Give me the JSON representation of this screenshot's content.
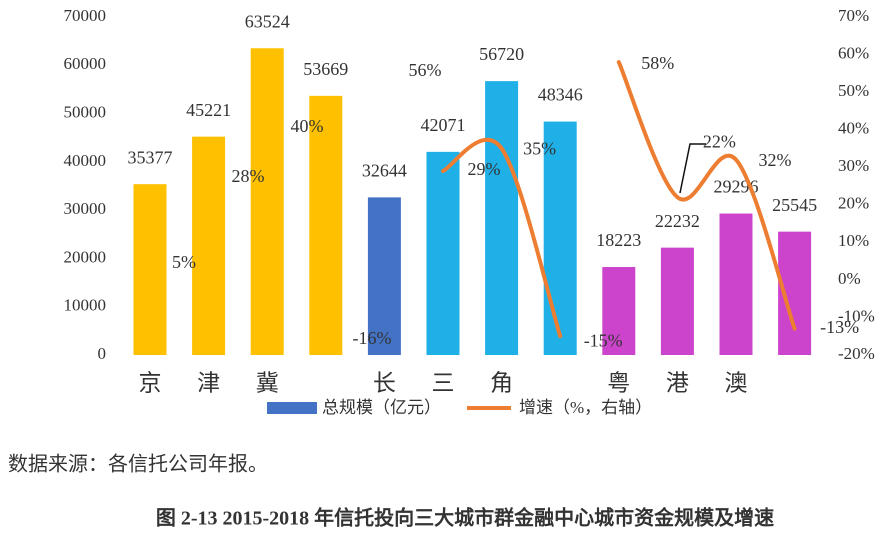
{
  "chart_data": {
    "type": "bar-line",
    "categories": [
      "京",
      "津",
      "冀",
      null,
      "长",
      "三",
      "角",
      null,
      "粤",
      "港",
      "澳",
      null
    ],
    "series": [
      {
        "name": "总规模（亿元）",
        "color": "#4472C4",
        "type": "bar",
        "colors": [
          "#FFC000",
          "#FFC000",
          "#FFC000",
          "#FFC000",
          "#4472C4",
          "#1FB0E8",
          "#1FB0E8",
          "#1FB0E8",
          "#CC44CC",
          "#CC44CC",
          "#CC44CC",
          "#CC44CC"
        ],
        "values": [
          35377,
          45221,
          63524,
          53669,
          32644,
          42071,
          56720,
          48346,
          18223,
          22232,
          29296,
          25545
        ]
      },
      {
        "name": "增速（%，右轴）",
        "color": "#ED7D31",
        "type": "line",
        "axis": "y2",
        "values": [
          null,
          null,
          null,
          null,
          null,
          29,
          35,
          -15,
          58,
          22,
          32,
          -13
        ],
        "value_labels": [
          null,
          null,
          null,
          null,
          null,
          "29%",
          "35%",
          "-15%",
          "58%",
          "22%",
          "32%",
          "-13%"
        ]
      }
    ],
    "annotations": [
      "5%",
      "28%",
      "40%",
      "56%",
      "-16%"
    ],
    "ylim": [
      0,
      70000
    ],
    "yticks": [
      0,
      10000,
      20000,
      30000,
      40000,
      50000,
      60000,
      70000
    ],
    "y2lim": [
      -20,
      70
    ],
    "y2ticks": [
      {
        "value": -20,
        "label": "-20%"
      },
      {
        "value": -10,
        "label": "-10%"
      },
      {
        "value": 0,
        "label": "0%"
      },
      {
        "value": 10,
        "label": "10%"
      },
      {
        "value": 20,
        "label": "20%"
      },
      {
        "value": 30,
        "label": "30%"
      },
      {
        "value": 40,
        "label": "40%"
      },
      {
        "value": 50,
        "label": "50%"
      },
      {
        "value": 60,
        "label": "60%"
      },
      {
        "value": 70,
        "label": "70%"
      }
    ],
    "grid": false,
    "source": "数据来源：各信托公司年报。",
    "caption": "图 2-13 2015-2018 年信托投向三大城市群金融中心城市资金规模及增速"
  }
}
